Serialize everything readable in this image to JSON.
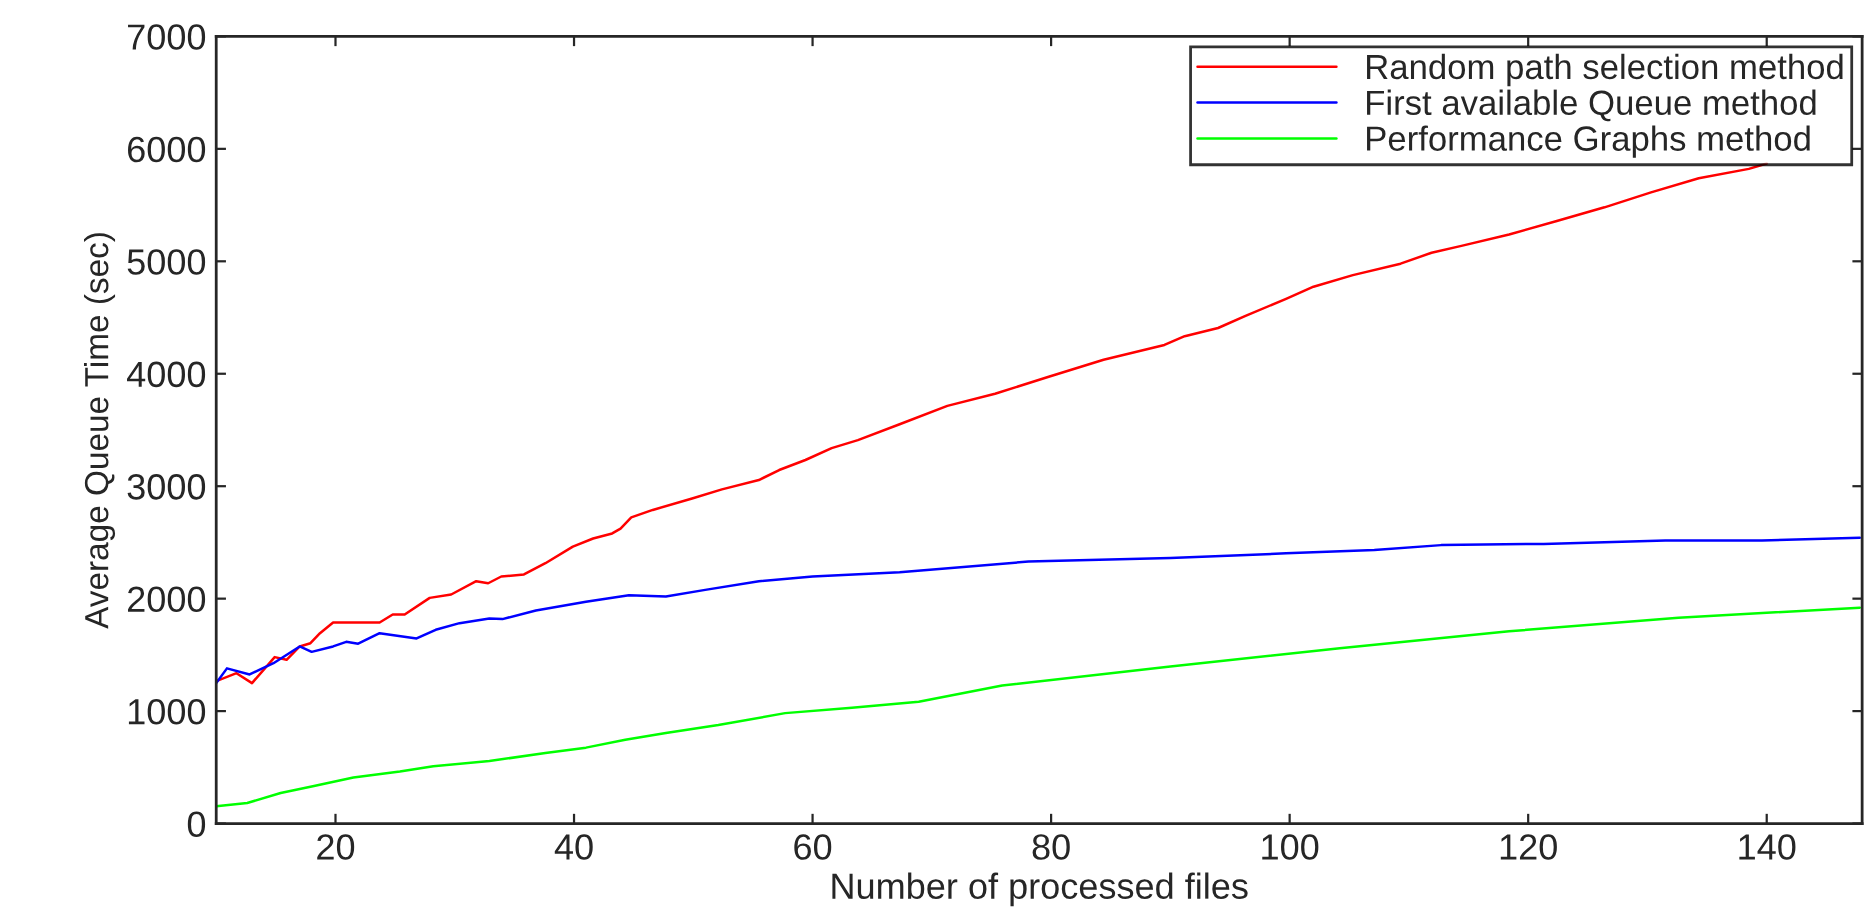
{
  "chart_data": {
    "type": "line",
    "xlabel": "Number of processed files",
    "ylabel": "Average Queue Time (sec)",
    "xlim": [
      10,
      148
    ],
    "xticks": [
      20,
      40,
      60,
      80,
      100,
      120,
      140
    ],
    "ylim": [
      0,
      7000
    ],
    "yticks": [
      0,
      1000,
      2000,
      3000,
      4000,
      5000,
      6000,
      7000
    ],
    "grid": false,
    "legend": "top right",
    "marker": "none",
    "line_style": "solid",
    "series": [
      {
        "name": "Random path selection method",
        "color": "#ff0000",
        "x": [
          10,
          11.7,
          13,
          14.9,
          15.9,
          17,
          17.9,
          18.7,
          19.8,
          23.7,
          24.8,
          25.8,
          27.9,
          29.7,
          31.8,
          32.8,
          33.9,
          35.8,
          37.6,
          39.9,
          41.6,
          43.2,
          43.9,
          44.8,
          46.6,
          49.9,
          52.4,
          55.5,
          57.2,
          59.4,
          61.6,
          63.8,
          67.3,
          71.3,
          75.3,
          79.8,
          84.4,
          89.5,
          91.2,
          94.0,
          96.3,
          99.7,
          102.0,
          105.3,
          109.3,
          111.9,
          114.4,
          118.4,
          122.4,
          126.4,
          130.3,
          134.3,
          138.5,
          140
        ],
        "values": [
          1266,
          1337,
          1249,
          1480,
          1456,
          1575,
          1604,
          1693,
          1788,
          1788,
          1859,
          1859,
          2007,
          2037,
          2155,
          2137,
          2197,
          2215,
          2315,
          2463,
          2535,
          2580,
          2623,
          2723,
          2789,
          2890,
          2972,
          3055,
          3144,
          3233,
          3339,
          3410,
          3551,
          3714,
          3822,
          3973,
          4124,
          4256,
          4334,
          4407,
          4515,
          4666,
          4774,
          4877,
          4979,
          5076,
          5137,
          5238,
          5359,
          5480,
          5613,
          5739,
          5822,
          5870
        ]
      },
      {
        "name": "First available Queue method",
        "color": "#0000ff",
        "x": [
          10,
          10.9,
          12.8,
          14.8,
          17,
          18,
          19.8,
          20.9,
          21.9,
          23.7,
          26.8,
          28.4,
          30.4,
          32.9,
          34,
          36.8,
          41,
          44.6,
          47.7,
          51,
          55.5,
          60,
          67.3,
          78.1,
          90,
          99.7,
          107.1,
          112.7,
          121.3,
          131.5,
          139.6,
          147.8
        ],
        "values": [
          1249,
          1380,
          1326,
          1426,
          1575,
          1527,
          1575,
          1616,
          1599,
          1693,
          1646,
          1723,
          1782,
          1824,
          1818,
          1895,
          1972,
          2031,
          2019,
          2078,
          2155,
          2197,
          2234,
          2330,
          2361,
          2403,
          2433,
          2476,
          2487,
          2517,
          2517,
          2542
        ]
      },
      {
        "name": "Performance Graphs method",
        "color": "#00ff00",
        "x": [
          10,
          12.6,
          15.4,
          18.1,
          21.5,
          25.4,
          28.2,
          32.9,
          37.6,
          41,
          44.3,
          47.7,
          52.1,
          57.7,
          63.3,
          68.9,
          75.9,
          90,
          104.2,
          118.4,
          132.6,
          147.8
        ],
        "values": [
          154,
          183,
          272,
          332,
          409,
          462,
          509,
          556,
          627,
          675,
          746,
          805,
          876,
          982,
          1030,
          1083,
          1227,
          1396,
          1559,
          1710,
          1831,
          1920
        ]
      }
    ]
  }
}
